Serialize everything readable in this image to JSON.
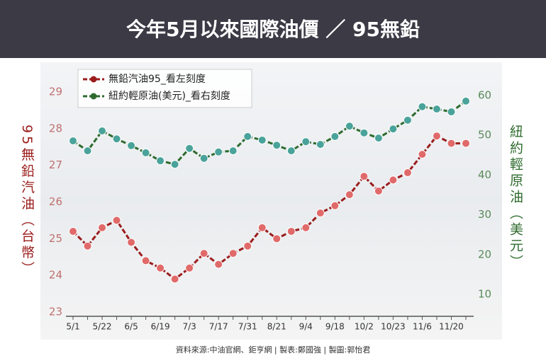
{
  "chart_data": {
    "type": "line",
    "title": "今年5月以來國際油價 ／ 95無鉛",
    "y_label": "95無鉛汽油（台幣）",
    "y2_label": "紐約輕原油（美元）",
    "source": "資料來源:中油官網、鉅亨網 | 製表:鄭國強 | 製圖:郭怡君",
    "categories": [
      "5/1",
      null,
      "5/22",
      null,
      "6/5",
      null,
      "6/19",
      null,
      "7/3",
      null,
      "7/17",
      null,
      "7/31",
      null,
      "8/21",
      null,
      "9/4",
      null,
      "9/18",
      null,
      "10/2",
      null,
      "10/23",
      null,
      "11/6",
      null,
      "11/20",
      null
    ],
    "series": [
      {
        "name": "無鉛汽油95_看左刻度",
        "color": "#9b1c1c",
        "marker_color": "#e06a6a",
        "values": [
          25.2,
          24.8,
          25.3,
          25.5,
          24.9,
          24.4,
          24.2,
          23.9,
          24.2,
          24.6,
          24.3,
          24.6,
          24.8,
          25.3,
          25.0,
          25.2,
          25.3,
          25.7,
          25.9,
          26.2,
          26.7,
          26.3,
          26.6,
          26.8,
          27.3,
          27.8,
          27.6,
          27.6
        ]
      },
      {
        "name": "紐約輕原油(美元)_看右刻度",
        "color": "#2e6b2e",
        "marker_color": "#4aa39a",
        "axis": "y2",
        "values": [
          48.6,
          46.1,
          51.1,
          49.1,
          47.4,
          45.6,
          43.6,
          42.7,
          46.7,
          44.2,
          45.8,
          46.1,
          49.7,
          48.8,
          47.5,
          46.1,
          48.4,
          47.7,
          49.7,
          52.3,
          50.6,
          49.3,
          51.6,
          53.8,
          57.2,
          56.6,
          55.9,
          58.6
        ]
      }
    ],
    "ylim": [
      23,
      29
    ],
    "yticks": [
      23,
      24,
      25,
      26,
      27,
      28,
      29
    ],
    "y2lim": [
      10,
      60
    ],
    "y2ticks": [
      10,
      20,
      30,
      40,
      50,
      60
    ]
  }
}
